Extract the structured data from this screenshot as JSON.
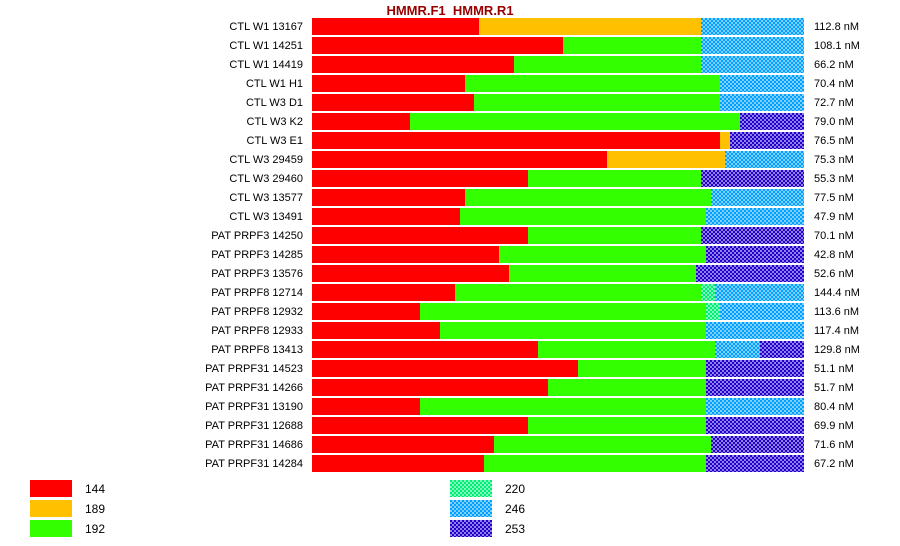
{
  "chart_data": {
    "type": "bar",
    "variant": "horizontal-100pct-stacked",
    "title": "HMMR.F1  HMMR.R1",
    "title_color": "#990000",
    "unit": "nM",
    "legend": {
      "left": [
        {
          "allele": "144",
          "color": "#ff0000",
          "pattern": "solid"
        },
        {
          "allele": "189",
          "color": "#ffc000",
          "pattern": "solid"
        },
        {
          "allele": "192",
          "color": "#33ff00",
          "pattern": "solid"
        }
      ],
      "right": [
        {
          "allele": "220",
          "color": "#00ee76",
          "pattern": "checker"
        },
        {
          "allele": "246",
          "color": "#00a0ff",
          "pattern": "checker"
        },
        {
          "allele": "253",
          "color": "#2200cc",
          "pattern": "checker"
        }
      ]
    },
    "rows": [
      {
        "label": "CTL W1 13167",
        "value": "112.8 nM",
        "segments": [
          {
            "allele": "144",
            "pct": 34
          },
          {
            "allele": "189",
            "pct": 45
          },
          {
            "allele": "246",
            "pct": 21
          }
        ]
      },
      {
        "label": "CTL W1 14251",
        "value": "108.1 nM",
        "segments": [
          {
            "allele": "144",
            "pct": 51
          },
          {
            "allele": "192",
            "pct": 28
          },
          {
            "allele": "246",
            "pct": 21
          }
        ]
      },
      {
        "label": "CTL W1 14419",
        "value": "66.2 nM",
        "segments": [
          {
            "allele": "144",
            "pct": 41
          },
          {
            "allele": "192",
            "pct": 38
          },
          {
            "allele": "246",
            "pct": 21
          }
        ]
      },
      {
        "label": "CTL W1 H1",
        "value": "70.4 nM",
        "segments": [
          {
            "allele": "144",
            "pct": 31
          },
          {
            "allele": "192",
            "pct": 52
          },
          {
            "allele": "246",
            "pct": 17
          }
        ]
      },
      {
        "label": "CTL W3 D1",
        "value": "72.7 nM",
        "segments": [
          {
            "allele": "144",
            "pct": 33
          },
          {
            "allele": "192",
            "pct": 50
          },
          {
            "allele": "246",
            "pct": 17
          }
        ]
      },
      {
        "label": "CTL W3 K2",
        "value": "79.0 nM",
        "segments": [
          {
            "allele": "144",
            "pct": 20
          },
          {
            "allele": "192",
            "pct": 67
          },
          {
            "allele": "253",
            "pct": 13
          }
        ]
      },
      {
        "label": "CTL W3 E1",
        "value": "76.5 nM",
        "segments": [
          {
            "allele": "144",
            "pct": 83
          },
          {
            "allele": "189",
            "pct": 2
          },
          {
            "allele": "253",
            "pct": 15
          }
        ]
      },
      {
        "label": "CTL W3 29459",
        "value": "75.3 nM",
        "segments": [
          {
            "allele": "144",
            "pct": 60
          },
          {
            "allele": "189",
            "pct": 24
          },
          {
            "allele": "246",
            "pct": 16
          }
        ]
      },
      {
        "label": "CTL W3 29460",
        "value": "55.3 nM",
        "segments": [
          {
            "allele": "144",
            "pct": 44
          },
          {
            "allele": "192",
            "pct": 35
          },
          {
            "allele": "253",
            "pct": 21
          }
        ]
      },
      {
        "label": "CTL W3 13577",
        "value": "77.5 nM",
        "segments": [
          {
            "allele": "144",
            "pct": 31
          },
          {
            "allele": "192",
            "pct": 50
          },
          {
            "allele": "246",
            "pct": 19
          }
        ]
      },
      {
        "label": "CTL W3 13491",
        "value": "47.9 nM",
        "segments": [
          {
            "allele": "144",
            "pct": 30
          },
          {
            "allele": "192",
            "pct": 50
          },
          {
            "allele": "246",
            "pct": 20
          }
        ]
      },
      {
        "label": "PAT PRPF3 14250",
        "value": "70.1 nM",
        "segments": [
          {
            "allele": "144",
            "pct": 44
          },
          {
            "allele": "192",
            "pct": 35
          },
          {
            "allele": "253",
            "pct": 21
          }
        ]
      },
      {
        "label": "PAT PRPF3 14285",
        "value": "42.8 nM",
        "segments": [
          {
            "allele": "144",
            "pct": 38
          },
          {
            "allele": "192",
            "pct": 42
          },
          {
            "allele": "253",
            "pct": 20
          }
        ]
      },
      {
        "label": "PAT PRPF3 13576",
        "value": "52.6 nM",
        "segments": [
          {
            "allele": "144",
            "pct": 40
          },
          {
            "allele": "192",
            "pct": 38
          },
          {
            "allele": "253",
            "pct": 22
          }
        ]
      },
      {
        "label": "PAT PRPF8 12714",
        "value": "144.4 nM",
        "segments": [
          {
            "allele": "144",
            "pct": 29
          },
          {
            "allele": "192",
            "pct": 50
          },
          {
            "allele": "220",
            "pct": 3
          },
          {
            "allele": "246",
            "pct": 18
          }
        ]
      },
      {
        "label": "PAT PRPF8 12932",
        "value": "113.6 nM",
        "segments": [
          {
            "allele": "144",
            "pct": 22
          },
          {
            "allele": "192",
            "pct": 58
          },
          {
            "allele": "220",
            "pct": 3
          },
          {
            "allele": "246",
            "pct": 17
          }
        ]
      },
      {
        "label": "PAT PRPF8 12933",
        "value": "117.4 nM",
        "segments": [
          {
            "allele": "144",
            "pct": 26
          },
          {
            "allele": "192",
            "pct": 54
          },
          {
            "allele": "246",
            "pct": 20
          }
        ]
      },
      {
        "label": "PAT PRPF8 13413",
        "value": "129.8 nM",
        "segments": [
          {
            "allele": "144",
            "pct": 46
          },
          {
            "allele": "192",
            "pct": 36
          },
          {
            "allele": "246",
            "pct": 9
          },
          {
            "allele": "253",
            "pct": 9
          }
        ]
      },
      {
        "label": "PAT PRPF31 14523",
        "value": "51.1 nM",
        "segments": [
          {
            "allele": "144",
            "pct": 54
          },
          {
            "allele": "192",
            "pct": 26
          },
          {
            "allele": "253",
            "pct": 20
          }
        ]
      },
      {
        "label": "PAT PRPF31 14266",
        "value": "51.7 nM",
        "segments": [
          {
            "allele": "144",
            "pct": 48
          },
          {
            "allele": "192",
            "pct": 32
          },
          {
            "allele": "253",
            "pct": 20
          }
        ]
      },
      {
        "label": "PAT PRPF31 13190",
        "value": "80.4 nM",
        "segments": [
          {
            "allele": "144",
            "pct": 22
          },
          {
            "allele": "192",
            "pct": 58
          },
          {
            "allele": "246",
            "pct": 20
          }
        ]
      },
      {
        "label": "PAT PRPF31 12688",
        "value": "69.9 nM",
        "segments": [
          {
            "allele": "144",
            "pct": 44
          },
          {
            "allele": "192",
            "pct": 36
          },
          {
            "allele": "253",
            "pct": 20
          }
        ]
      },
      {
        "label": "PAT PRPF31 14686",
        "value": "71.6 nM",
        "segments": [
          {
            "allele": "144",
            "pct": 37
          },
          {
            "allele": "192",
            "pct": 44
          },
          {
            "allele": "253",
            "pct": 19
          }
        ]
      },
      {
        "label": "PAT PRPF31 14284",
        "value": "67.2 nM",
        "segments": [
          {
            "allele": "144",
            "pct": 35
          },
          {
            "allele": "192",
            "pct": 45
          },
          {
            "allele": "253",
            "pct": 20
          }
        ]
      }
    ]
  }
}
